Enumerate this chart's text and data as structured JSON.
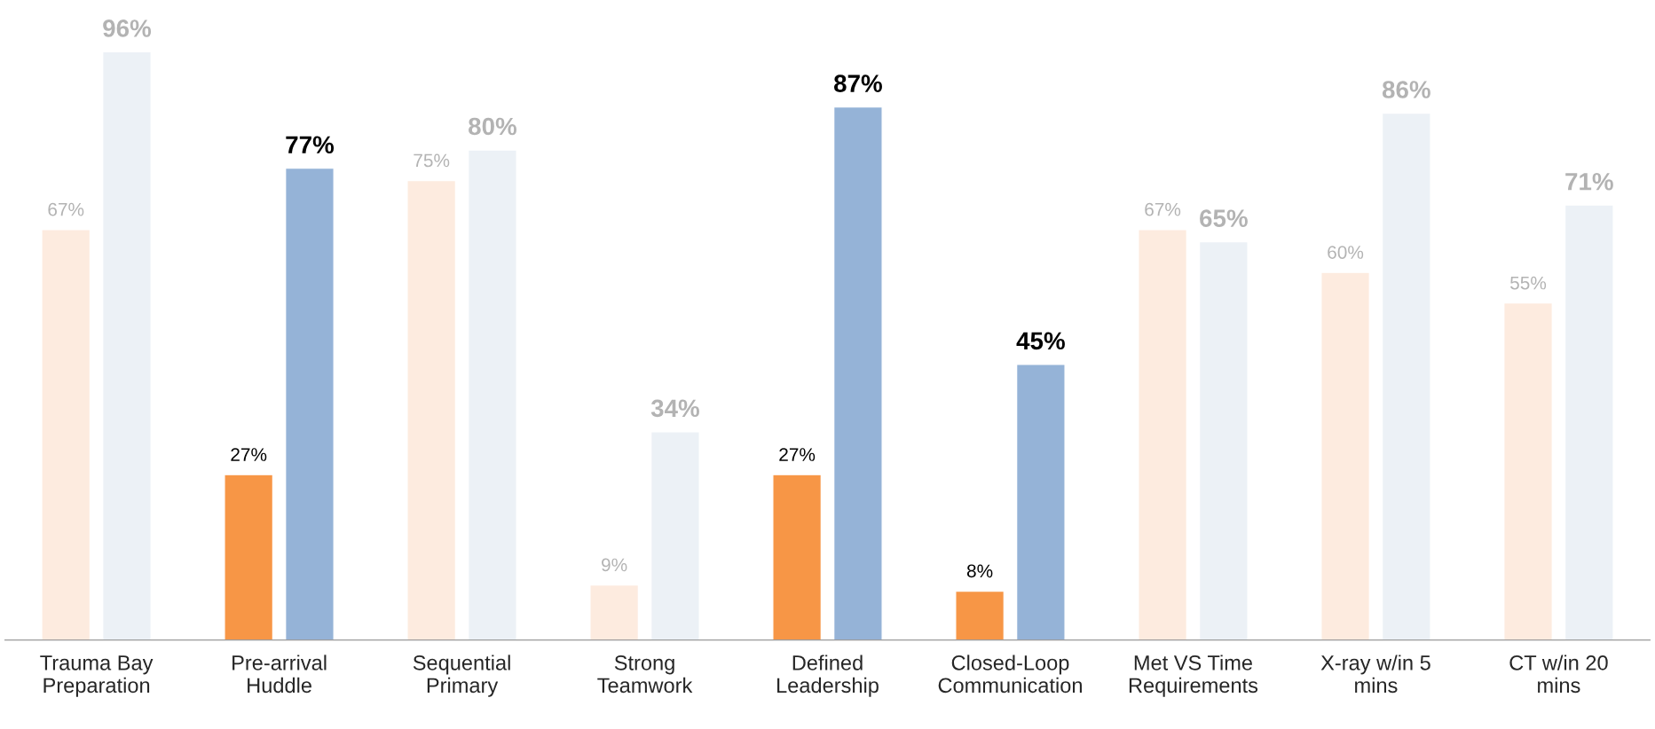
{
  "chart_data": {
    "type": "bar",
    "categories": [
      "Trauma Bay\nPreparation",
      "Pre-arrival\nHuddle",
      "Sequential\nPrimary",
      "Strong\nTeamwork",
      "Defined\nLeadership",
      "Closed-Loop\nCommunication",
      "Met VS Time\nRequirements",
      "X-ray w/in 5\nmins",
      "CT w/in 20\nmins"
    ],
    "series": [
      {
        "values": [
          67,
          27,
          75,
          9,
          27,
          8,
          67,
          60,
          55
        ],
        "value_labels": [
          "67%",
          "27%",
          "75%",
          "9%",
          "27%",
          "8%",
          "67%",
          "60%",
          "55%"
        ],
        "colors": [
          "#fdebdf",
          "#f79646",
          "#fdebdf",
          "#fdebdf",
          "#f79646",
          "#f79646",
          "#fdebdf",
          "#fdebdf",
          "#fdebdf"
        ]
      },
      {
        "values": [
          96,
          77,
          80,
          34,
          87,
          45,
          65,
          86,
          71
        ],
        "value_labels": [
          "96%",
          "77%",
          "80%",
          "34%",
          "87%",
          "45%",
          "65%",
          "86%",
          "71%"
        ],
        "colors": [
          "#ecf1f6",
          "#95b3d7",
          "#ecf1f6",
          "#ecf1f6",
          "#95b3d7",
          "#95b3d7",
          "#ecf1f6",
          "#ecf1f6",
          "#ecf1f6"
        ]
      }
    ],
    "legend": false,
    "grid": false
  }
}
